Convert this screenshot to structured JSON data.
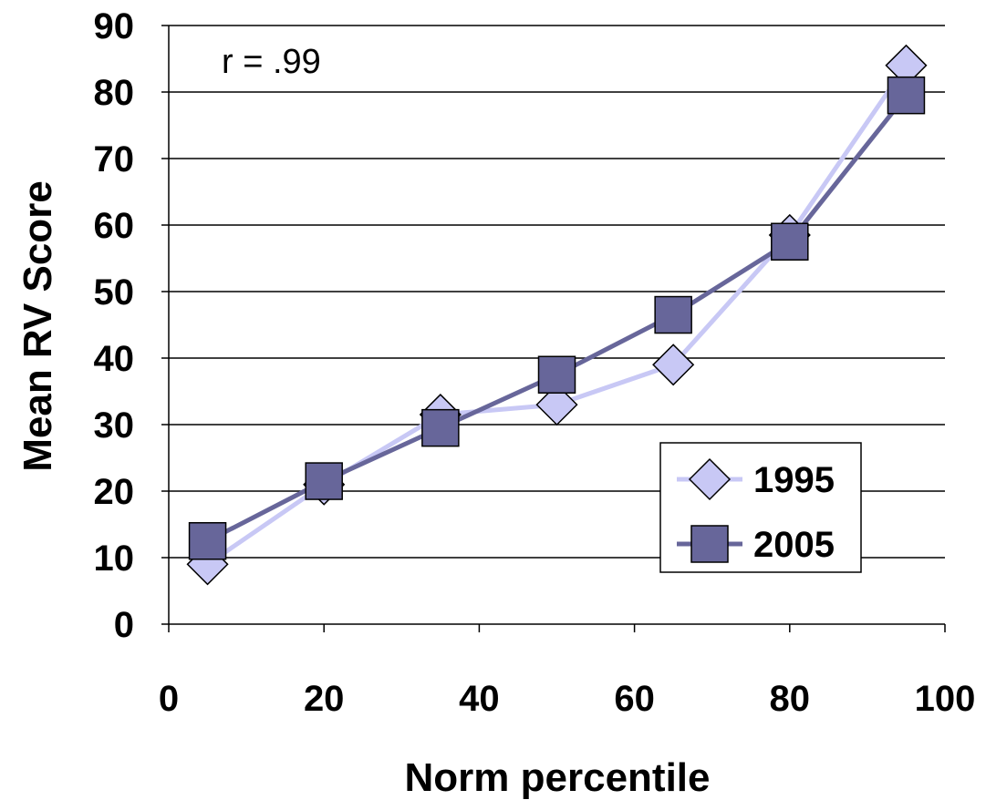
{
  "chart_data": {
    "type": "line",
    "title": "",
    "xlabel": "Norm percentile",
    "ylabel": "Mean RV Score",
    "xlim": [
      0,
      100
    ],
    "ylim": [
      0,
      90
    ],
    "xticks": [
      0,
      20,
      40,
      60,
      80,
      100
    ],
    "yticks": [
      0,
      10,
      20,
      30,
      40,
      50,
      60,
      70,
      80,
      90
    ],
    "grid": "horizontal",
    "annotation": "r = .99",
    "legend_position": "bottom-right",
    "series": [
      {
        "name": "1995",
        "marker": "diamond",
        "color": "#c8c8f5",
        "line_color": "#c8c8f5",
        "x": [
          5,
          20,
          35,
          50,
          65,
          80,
          95
        ],
        "y": [
          9,
          21,
          31.5,
          33,
          39,
          58.5,
          84
        ]
      },
      {
        "name": "2005",
        "marker": "square",
        "color": "#67669a",
        "line_color": "#67669a",
        "x": [
          5,
          20,
          35,
          50,
          65,
          80,
          95
        ],
        "y": [
          12.5,
          21.5,
          29.5,
          37.5,
          46.5,
          57.5,
          79.5
        ]
      }
    ]
  }
}
